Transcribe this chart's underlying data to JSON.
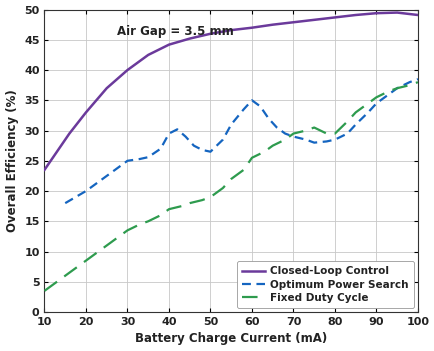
{
  "title_annotation": "Air Gap = 3.5 mm",
  "xlabel": "Battery Charge Current (mA)",
  "ylabel": "Overall Efficiency (%)",
  "xlim": [
    10,
    100
  ],
  "ylim": [
    0,
    50
  ],
  "xticks": [
    10,
    20,
    30,
    40,
    50,
    60,
    70,
    80,
    90,
    100
  ],
  "yticks": [
    0,
    5,
    10,
    15,
    20,
    25,
    30,
    35,
    40,
    45,
    50
  ],
  "closed_loop_x": [
    10,
    13,
    16,
    20,
    25,
    30,
    35,
    40,
    45,
    50,
    55,
    60,
    65,
    70,
    75,
    80,
    85,
    90,
    95,
    100
  ],
  "closed_loop_y": [
    23.5,
    26.5,
    29.5,
    33.0,
    37.0,
    40.0,
    42.5,
    44.2,
    45.2,
    46.0,
    46.6,
    47.0,
    47.5,
    47.9,
    48.3,
    48.7,
    49.1,
    49.4,
    49.5,
    49.1
  ],
  "optimum_x": [
    15,
    18,
    20,
    23,
    25,
    28,
    30,
    33,
    35,
    38,
    40,
    42,
    44,
    46,
    48,
    50,
    53,
    55,
    58,
    60,
    62,
    64,
    66,
    68,
    70,
    73,
    75,
    78,
    80,
    83,
    85,
    88,
    90,
    93,
    95,
    98,
    100
  ],
  "optimum_y": [
    18.0,
    19.2,
    20.0,
    21.5,
    22.5,
    24.0,
    25.0,
    25.3,
    25.6,
    27.0,
    29.5,
    30.2,
    29.0,
    27.5,
    26.8,
    26.5,
    28.5,
    31.0,
    33.5,
    35.0,
    34.0,
    32.0,
    30.5,
    29.5,
    29.0,
    28.5,
    28.0,
    28.2,
    28.5,
    29.5,
    31.0,
    33.0,
    34.5,
    36.0,
    37.0,
    38.0,
    38.5
  ],
  "fixed_x": [
    10,
    13,
    15,
    18,
    20,
    23,
    25,
    28,
    30,
    33,
    35,
    38,
    40,
    43,
    45,
    48,
    50,
    53,
    55,
    58,
    60,
    63,
    65,
    68,
    70,
    73,
    75,
    78,
    80,
    83,
    85,
    88,
    90,
    93,
    95,
    98,
    100
  ],
  "fixed_y": [
    3.5,
    5.0,
    6.0,
    7.5,
    8.5,
    10.0,
    11.0,
    12.5,
    13.5,
    14.5,
    15.0,
    16.0,
    17.0,
    17.5,
    18.0,
    18.5,
    19.0,
    20.5,
    22.0,
    23.5,
    25.5,
    26.5,
    27.5,
    28.5,
    29.5,
    30.0,
    30.5,
    29.5,
    29.5,
    31.5,
    33.0,
    34.5,
    35.5,
    36.5,
    37.0,
    37.5,
    38.0
  ],
  "closed_loop_color": "#6B3A9B",
  "optimum_color": "#1565C0",
  "fixed_color": "#2E9B4E",
  "background_color": "#FFFFFF",
  "grid_color": "#C8C8C8",
  "legend_labels": [
    "Closed-Loop Control",
    "Optimum Power Search",
    "Fixed Duty Cycle"
  ],
  "font_size_labels": 8.5,
  "font_size_ticks": 8,
  "font_size_annotation": 8.5,
  "font_size_legend": 7.5
}
